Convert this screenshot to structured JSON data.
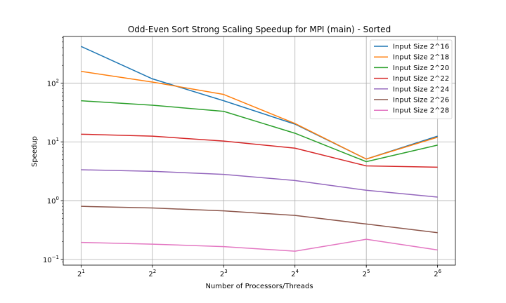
{
  "chart_data": {
    "type": "line",
    "title": "Odd-Even Sort Strong Scaling Speedup for MPI (main) - Sorted",
    "xlabel": "Number of Processors/Threads",
    "ylabel": "Speedup",
    "x": [
      2,
      4,
      8,
      16,
      32,
      64
    ],
    "x_tick_labels": [
      {
        "base": "2",
        "exp": "1"
      },
      {
        "base": "2",
        "exp": "2"
      },
      {
        "base": "2",
        "exp": "3"
      },
      {
        "base": "2",
        "exp": "4"
      },
      {
        "base": "2",
        "exp": "5"
      },
      {
        "base": "2",
        "exp": "6"
      }
    ],
    "x_scale": "log2",
    "y_scale": "log10",
    "ylim": [
      0.08,
      620
    ],
    "y_tick_labels": [
      {
        "base": "10",
        "exp": "−1",
        "value": 0.1
      },
      {
        "base": "10",
        "exp": "0",
        "value": 1
      },
      {
        "base": "10",
        "exp": "1",
        "value": 10
      },
      {
        "base": "10",
        "exp": "2",
        "value": 100
      }
    ],
    "grid": true,
    "legend_position": "top-right",
    "series": [
      {
        "name": "Input Size 2^16",
        "color": "#1f77b4",
        "values": [
          420,
          118,
          50,
          20,
          5.1,
          12.5
        ]
      },
      {
        "name": "Input Size 2^18",
        "color": "#ff7f0e",
        "values": [
          158,
          104,
          64,
          20.5,
          5.1,
          12
        ]
      },
      {
        "name": "Input Size 2^20",
        "color": "#2ca02c",
        "values": [
          50,
          42,
          33,
          14,
          4.6,
          8.8
        ]
      },
      {
        "name": "Input Size 2^22",
        "color": "#d62728",
        "values": [
          13.5,
          12.5,
          10.3,
          7.8,
          3.9,
          3.7
        ]
      },
      {
        "name": "Input Size 2^24",
        "color": "#9467bd",
        "values": [
          3.35,
          3.15,
          2.8,
          2.2,
          1.5,
          1.15
        ]
      },
      {
        "name": "Input Size 2^26",
        "color": "#8c564b",
        "values": [
          0.8,
          0.75,
          0.67,
          0.56,
          0.4,
          0.285
        ]
      },
      {
        "name": "Input Size 2^28",
        "color": "#e377c2",
        "values": [
          0.195,
          0.182,
          0.165,
          0.138,
          0.22,
          0.145
        ]
      }
    ]
  }
}
